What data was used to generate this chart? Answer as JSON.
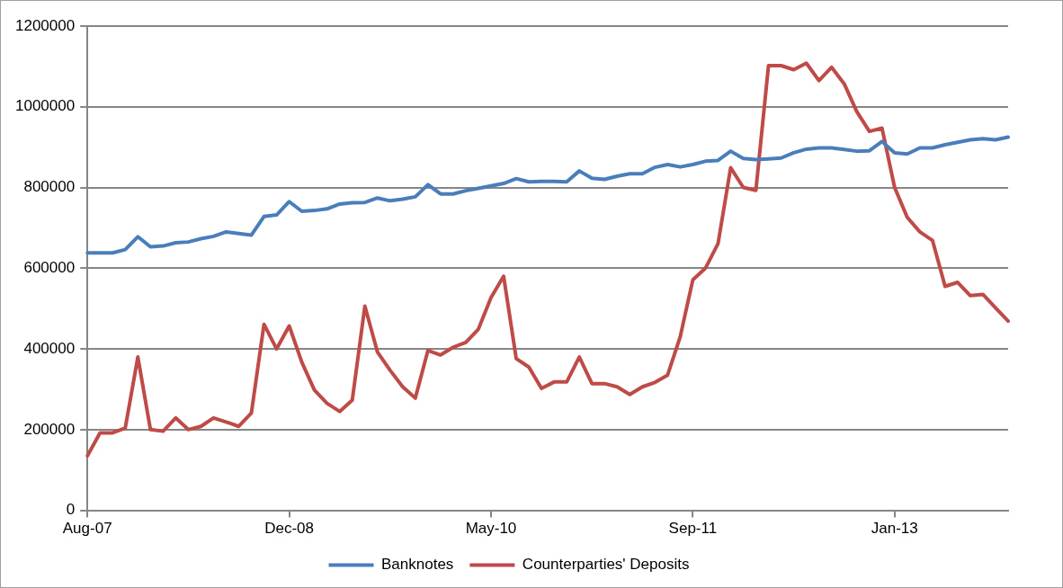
{
  "chart_data": {
    "type": "line",
    "categories": [
      "Aug-07",
      null,
      null,
      null,
      null,
      null,
      null,
      null,
      null,
      null,
      null,
      null,
      null,
      null,
      null,
      null,
      "Dec-08",
      null,
      null,
      null,
      null,
      null,
      null,
      null,
      null,
      null,
      null,
      null,
      null,
      null,
      null,
      null,
      "May-10",
      null,
      null,
      null,
      null,
      null,
      null,
      null,
      null,
      null,
      null,
      null,
      null,
      null,
      null,
      null,
      "Sep-11",
      null,
      null,
      null,
      null,
      null,
      null,
      null,
      null,
      null,
      null,
      null,
      null,
      null,
      null,
      null,
      "Jan-13",
      null,
      null,
      null,
      null,
      null,
      null,
      null,
      null,
      null
    ],
    "series": [
      {
        "name": "Banknotes",
        "color": "#4a7ebb",
        "values": [
          638000,
          638000,
          638000,
          646000,
          678000,
          653000,
          655000,
          663000,
          665000,
          673000,
          679000,
          690000,
          686000,
          682000,
          728000,
          732000,
          765000,
          741000,
          743000,
          747000,
          759000,
          762000,
          763000,
          774000,
          767000,
          771000,
          777000,
          807000,
          784000,
          784000,
          792000,
          798000,
          804000,
          810000,
          822000,
          814000,
          815000,
          815000,
          814000,
          841000,
          823000,
          820000,
          828000,
          834000,
          834000,
          850000,
          857000,
          851000,
          857000,
          865000,
          867000,
          890000,
          872000,
          869000,
          871000,
          873000,
          886000,
          895000,
          898000,
          898000,
          894000,
          890000,
          891000,
          914000,
          886000,
          883000,
          898000,
          898000,
          906000,
          912000,
          918000,
          921000,
          918000,
          925000
        ]
      },
      {
        "name": "Counterparties' Deposits",
        "color": "#be4b48",
        "values": [
          135000,
          192000,
          192000,
          204000,
          380000,
          200000,
          196000,
          229000,
          200000,
          208000,
          229000,
          219000,
          208000,
          241000,
          461000,
          400000,
          457000,
          367000,
          298000,
          265000,
          245000,
          273000,
          506000,
          392000,
          347000,
          306000,
          278000,
          396000,
          385000,
          404000,
          416000,
          449000,
          527000,
          580000,
          376000,
          355000,
          302000,
          318000,
          318000,
          380000,
          314000,
          314000,
          306000,
          287000,
          306000,
          317000,
          335000,
          430000,
          571000,
          600000,
          661000,
          849000,
          800000,
          793000,
          1102000,
          1102000,
          1092000,
          1108000,
          1065000,
          1098000,
          1057000,
          988000,
          939000,
          947000,
          800000,
          726000,
          690000,
          669000,
          555000,
          565000,
          532000,
          535000,
          502000,
          469000
        ]
      }
    ],
    "ylim": [
      0,
      1200000
    ],
    "yticks": [
      0,
      200000,
      400000,
      600000,
      800000,
      1000000,
      1200000
    ],
    "grid": "y",
    "legend": "bottom",
    "marker": "none",
    "line_style": "solid"
  }
}
